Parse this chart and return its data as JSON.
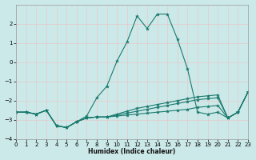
{
  "xlabel": "Humidex (Indice chaleur)",
  "xlim": [
    0,
    23
  ],
  "ylim": [
    -4,
    3
  ],
  "yticks": [
    -4,
    -3,
    -2,
    -1,
    0,
    1,
    2
  ],
  "xticks": [
    0,
    1,
    2,
    3,
    4,
    5,
    6,
    7,
    8,
    9,
    10,
    11,
    12,
    13,
    14,
    15,
    16,
    17,
    18,
    19,
    20,
    21,
    22,
    23
  ],
  "bg_color": "#cce9e9",
  "grid_color": "#b8d8d8",
  "line_color": "#1a7a6e",
  "lines": [
    {
      "x": [
        0,
        1,
        2,
        3,
        4,
        5,
        6,
        7,
        8,
        9,
        10,
        11,
        12,
        13,
        14,
        15,
        16,
        17,
        18,
        19,
        20,
        21,
        22,
        23
      ],
      "y": [
        -2.6,
        -2.6,
        -2.7,
        -2.5,
        -3.3,
        -3.4,
        -3.1,
        -2.8,
        -1.85,
        -1.25,
        0.05,
        1.05,
        2.4,
        1.75,
        2.5,
        2.5,
        1.2,
        -0.35,
        -2.6,
        -2.7,
        -2.6,
        -2.9,
        -2.6,
        -1.55
      ]
    },
    {
      "x": [
        0,
        1,
        2,
        3,
        4,
        5,
        6,
        7,
        8,
        9,
        10,
        11,
        12,
        13,
        14,
        15,
        16,
        17,
        18,
        19,
        20,
        21,
        22,
        23
      ],
      "y": [
        -2.6,
        -2.6,
        -2.7,
        -2.5,
        -3.3,
        -3.4,
        -3.1,
        -2.9,
        -2.85,
        -2.85,
        -2.8,
        -2.75,
        -2.7,
        -2.65,
        -2.6,
        -2.55,
        -2.5,
        -2.45,
        -2.35,
        -2.3,
        -2.25,
        -2.9,
        -2.6,
        -1.55
      ]
    },
    {
      "x": [
        0,
        1,
        2,
        3,
        4,
        5,
        6,
        7,
        8,
        9,
        10,
        11,
        12,
        13,
        14,
        15,
        16,
        17,
        18,
        19,
        20,
        21,
        22,
        23
      ],
      "y": [
        -2.6,
        -2.6,
        -2.7,
        -2.5,
        -3.3,
        -3.4,
        -3.1,
        -2.9,
        -2.85,
        -2.85,
        -2.75,
        -2.65,
        -2.55,
        -2.45,
        -2.35,
        -2.25,
        -2.15,
        -2.05,
        -1.95,
        -1.9,
        -1.85,
        -2.9,
        -2.6,
        -1.55
      ]
    },
    {
      "x": [
        0,
        1,
        2,
        3,
        4,
        5,
        6,
        7,
        8,
        9,
        10,
        11,
        12,
        13,
        14,
        15,
        16,
        17,
        18,
        19,
        20,
        21,
        22,
        23
      ],
      "y": [
        -2.6,
        -2.6,
        -2.7,
        -2.5,
        -3.3,
        -3.4,
        -3.1,
        -2.9,
        -2.85,
        -2.85,
        -2.7,
        -2.55,
        -2.4,
        -2.3,
        -2.2,
        -2.1,
        -2.0,
        -1.9,
        -1.8,
        -1.75,
        -1.7,
        -2.9,
        -2.6,
        -1.55
      ]
    }
  ]
}
